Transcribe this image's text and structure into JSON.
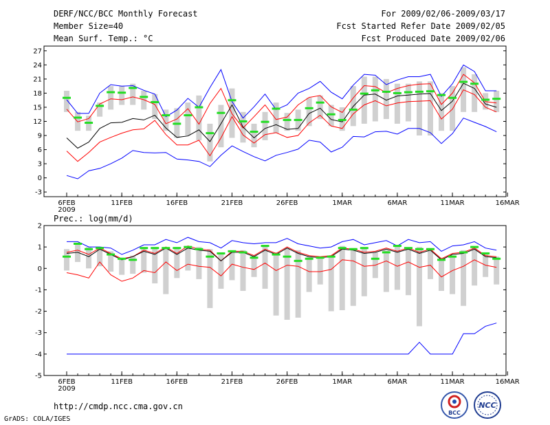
{
  "header": {
    "title": "DERF/NCC/BCC Monthly Forecast",
    "member_size": "Member Size=40",
    "variable": "Mean Surf. Temp.: °C",
    "period": "For 2009/02/06-2009/03/17",
    "started": "Fcst Started Refer Date 2009/02/05",
    "produced": "Fcst Produced Date 2009/02/06"
  },
  "footer": {
    "url": "http://cmdp.ncc.cma.gov.cn",
    "credit": "GrADS: COLA/IGES",
    "logo_bcc": "BCC",
    "logo_ncc": "NCC"
  },
  "colors": {
    "blue": "#0000ff",
    "red": "#ff0000",
    "black": "#000000",
    "green": "#22dd22",
    "gray": "#d0d0d0"
  },
  "chart_data": [
    {
      "type": "line",
      "title": "Mean Surf. Temp.: °C",
      "x_tick_labels": [
        "6FEB",
        "11FEB",
        "16FEB",
        "21FEB",
        "26FEB",
        "1MAR",
        "6MAR",
        "11MAR",
        "16MAR"
      ],
      "x_year_label": "2009",
      "ylim": [
        -4,
        28
      ],
      "yticks": [
        -3,
        0,
        3,
        6,
        9,
        12,
        15,
        18,
        21,
        24,
        27
      ],
      "series": [
        {
          "name": "max",
          "color": "blue",
          "values": [
            16.6,
            13.7,
            13.7,
            18.0,
            19.8,
            19.5,
            19.6,
            18.6,
            17.8,
            13.0,
            14.4,
            16.9,
            15.0,
            19.2,
            23.0,
            16.2,
            12.7,
            15.1,
            17.8,
            14.5,
            15.5,
            18.0,
            19.0,
            20.5,
            18.2,
            16.8,
            19.7,
            22.0,
            21.8,
            19.8,
            20.8,
            21.5,
            21.5,
            22.0,
            17.3,
            20.0,
            24.0,
            22.6,
            18.5,
            18.5
          ]
        },
        {
          "name": "upper",
          "color": "red",
          "values": [
            14.6,
            11.9,
            12.6,
            15.7,
            16.8,
            16.6,
            17.2,
            16.6,
            15.6,
            11.5,
            12.5,
            14.7,
            11.4,
            15.8,
            19.0,
            13.6,
            10.6,
            13.0,
            15.5,
            12.4,
            12.9,
            15.5,
            17.1,
            17.5,
            15.1,
            13.9,
            17.0,
            19.6,
            19.4,
            18.1,
            19.0,
            19.6,
            19.9,
            20.0,
            15.6,
            18.0,
            22.0,
            20.2,
            16.2,
            15.9
          ]
        },
        {
          "name": "mean",
          "color": "black",
          "values": [
            8.5,
            6.3,
            7.6,
            10.5,
            11.7,
            11.8,
            12.6,
            12.3,
            13.3,
            10.6,
            8.6,
            8.9,
            10.2,
            7.7,
            11.5,
            15.5,
            10.8,
            8.5,
            10.5,
            11.3,
            10.3,
            10.5,
            13.7,
            14.8,
            12.4,
            11.9,
            15.2,
            17.6,
            17.8,
            16.5,
            17.4,
            17.6,
            17.8,
            17.9,
            14.3,
            16.3,
            20.1,
            19.0,
            15.7,
            15.0
          ]
        },
        {
          "name": "lower",
          "color": "red",
          "values": [
            5.7,
            3.5,
            5.4,
            7.6,
            8.6,
            9.5,
            10.2,
            10.4,
            12.2,
            9.2,
            7.0,
            7.0,
            8.0,
            4.7,
            8.5,
            13.0,
            9.1,
            7.4,
            9.2,
            9.6,
            8.6,
            9.0,
            11.7,
            13.3,
            11.0,
            10.5,
            13.6,
            15.5,
            16.4,
            15.3,
            15.9,
            16.2,
            16.3,
            16.4,
            12.5,
            14.6,
            18.7,
            17.7,
            15.0,
            14.0
          ]
        },
        {
          "name": "min",
          "color": "blue",
          "values": [
            0.5,
            -0.2,
            1.5,
            2.0,
            3.0,
            4.2,
            5.8,
            5.4,
            5.3,
            5.4,
            4.0,
            3.8,
            3.5,
            2.4,
            4.8,
            6.8,
            5.6,
            4.5,
            3.6,
            4.8,
            5.4,
            6.1,
            8.0,
            7.6,
            5.5,
            6.5,
            8.8,
            8.7,
            9.8,
            9.9,
            9.3,
            10.5,
            10.5,
            9.6,
            7.3,
            9.4,
            12.7,
            11.8,
            10.9,
            9.8
          ]
        },
        {
          "name": "member_median",
          "color": "green",
          "values": [
            17.0,
            12.8,
            11.7,
            15.3,
            18.2,
            18.1,
            19.1,
            17.2,
            16.1,
            13.3,
            11.5,
            13.3,
            15.0,
            9.5,
            13.8,
            16.5,
            12.0,
            9.8,
            11.9,
            14.7,
            12.3,
            12.3,
            14.8,
            16.0,
            13.5,
            12.3,
            14.5,
            17.9,
            18.6,
            18.3,
            18.0,
            18.2,
            18.3,
            18.4,
            17.6,
            17.0,
            20.4,
            20.0,
            16.6,
            16.8
          ]
        },
        {
          "name": "range_top",
          "color": "gray",
          "values": [
            18.5,
            14.0,
            13.2,
            16.0,
            19.5,
            19.5,
            20.0,
            18.5,
            17.8,
            14.5,
            14.8,
            16.0,
            17.5,
            11.5,
            15.5,
            19.0,
            14.0,
            11.5,
            14.0,
            16.0,
            13.8,
            14.5,
            17.0,
            17.5,
            15.5,
            15.0,
            19.5,
            21.5,
            21.5,
            21.0,
            20.0,
            20.0,
            20.5,
            20.5,
            18.0,
            19.5,
            23.5,
            22.0,
            18.0,
            18.5
          ]
        },
        {
          "name": "range_bottom",
          "color": "gray",
          "values": [
            14.0,
            10.0,
            10.0,
            13.0,
            14.5,
            15.5,
            15.5,
            14.5,
            12.5,
            10.0,
            8.5,
            9.0,
            8.0,
            3.5,
            6.5,
            8.5,
            7.5,
            6.5,
            8.0,
            9.5,
            10.0,
            10.0,
            11.0,
            12.5,
            11.0,
            10.0,
            11.0,
            11.5,
            12.0,
            12.5,
            11.5,
            12.0,
            9.0,
            9.0,
            10.0,
            10.0,
            14.0,
            14.0,
            14.5,
            14.0
          ]
        }
      ]
    },
    {
      "type": "line",
      "title": "Prec.: log(mm/d)",
      "x_tick_labels": [
        "6FEB",
        "11FEB",
        "16FEB",
        "21FEB",
        "26FEB",
        "1MAR",
        "6MAR",
        "11MAR",
        "16MAR"
      ],
      "x_year_label": "2009",
      "ylim": [
        -5,
        2
      ],
      "yticks": [
        -5,
        -4,
        -3,
        -2,
        -1,
        0,
        1,
        2
      ],
      "series": [
        {
          "name": "max",
          "color": "blue",
          "values": [
            1.25,
            1.25,
            1.0,
            1.0,
            0.95,
            0.65,
            0.85,
            1.1,
            1.1,
            1.35,
            1.2,
            1.45,
            1.25,
            1.2,
            0.95,
            1.3,
            1.2,
            1.15,
            1.2,
            1.2,
            1.4,
            1.15,
            1.05,
            0.95,
            1.0,
            1.25,
            1.35,
            1.1,
            1.2,
            1.3,
            1.05,
            1.35,
            1.2,
            1.25,
            0.8,
            1.05,
            1.1,
            1.25,
            0.95,
            0.85
          ]
        },
        {
          "name": "upper",
          "color": "red",
          "values": [
            0.75,
            0.85,
            0.65,
            0.95,
            0.7,
            0.45,
            0.55,
            0.85,
            0.7,
            1.0,
            0.7,
            1.05,
            0.9,
            0.85,
            0.35,
            0.8,
            0.8,
            0.6,
            0.9,
            0.7,
            1.0,
            0.75,
            0.6,
            0.55,
            0.6,
            0.95,
            0.9,
            0.75,
            0.8,
            0.95,
            0.8,
            0.95,
            0.75,
            0.9,
            0.45,
            0.7,
            0.75,
            0.95,
            0.6,
            0.55
          ]
        },
        {
          "name": "mean",
          "color": "black",
          "values": [
            0.7,
            0.75,
            0.55,
            0.9,
            0.65,
            0.4,
            0.55,
            0.8,
            0.65,
            0.95,
            0.65,
            0.95,
            0.85,
            0.8,
            0.35,
            0.75,
            0.75,
            0.55,
            0.85,
            0.65,
            0.95,
            0.7,
            0.55,
            0.5,
            0.55,
            0.9,
            0.85,
            0.7,
            0.75,
            0.9,
            0.75,
            0.9,
            0.7,
            0.85,
            0.4,
            0.65,
            0.7,
            0.9,
            0.55,
            0.5
          ]
        },
        {
          "name": "lower",
          "color": "red",
          "values": [
            -0.2,
            -0.3,
            -0.45,
            0.3,
            -0.3,
            -0.6,
            -0.45,
            -0.1,
            -0.2,
            0.3,
            -0.1,
            0.2,
            0.1,
            0.05,
            -0.35,
            0.2,
            0.05,
            -0.05,
            0.25,
            -0.1,
            0.15,
            0.1,
            -0.15,
            -0.15,
            -0.05,
            0.4,
            0.35,
            0.1,
            0.15,
            0.35,
            0.1,
            0.3,
            0.05,
            0.15,
            -0.4,
            -0.1,
            0.1,
            0.4,
            0.15,
            0.05
          ]
        },
        {
          "name": "min",
          "color": "blue",
          "values": [
            -4,
            -4,
            -4,
            -4,
            -4,
            -4,
            -4,
            -4,
            -4,
            -4,
            -4,
            -4,
            -4,
            -4,
            -4,
            -4,
            -4,
            -4,
            -4,
            -4,
            -4,
            -4,
            -4,
            -4,
            -4,
            -4,
            -4,
            -4,
            -4,
            -4,
            -4,
            -4,
            -3.45,
            -4,
            -4,
            -4,
            -3.05,
            -3.05,
            -2.7,
            -2.55
          ]
        },
        {
          "name": "member_median",
          "color": "green",
          "values": [
            0.55,
            1.15,
            0.9,
            0.95,
            0.65,
            0.45,
            0.4,
            0.95,
            0.95,
            0.95,
            0.95,
            1.0,
            0.9,
            0.55,
            0.7,
            0.8,
            0.75,
            0.5,
            1.05,
            0.65,
            0.55,
            0.35,
            0.45,
            0.5,
            0.55,
            0.95,
            0.9,
            0.95,
            0.45,
            0.75,
            1.05,
            0.95,
            0.9,
            0.9,
            0.4,
            0.55,
            0.75,
            1.0,
            0.7,
            0.45
          ]
        },
        {
          "name": "range_top",
          "color": "gray",
          "values": [
            0.9,
            1.2,
            1.0,
            1.0,
            0.8,
            0.5,
            0.6,
            1.0,
            1.0,
            1.0,
            1.0,
            1.05,
            1.0,
            0.9,
            0.75,
            0.85,
            0.85,
            0.6,
            1.1,
            0.75,
            0.95,
            0.85,
            0.55,
            0.55,
            0.6,
            1.05,
            0.95,
            1.0,
            0.75,
            0.85,
            1.1,
            1.0,
            1.0,
            0.95,
            0.5,
            0.6,
            0.85,
            1.05,
            0.75,
            0.55
          ]
        },
        {
          "name": "range_bottom",
          "color": "gray",
          "values": [
            -0.1,
            0.3,
            0.0,
            0.1,
            -0.15,
            -0.3,
            -0.25,
            -0.2,
            -0.7,
            -1.2,
            -0.45,
            -0.1,
            -0.5,
            -1.85,
            -0.95,
            -0.55,
            -1.05,
            -0.4,
            -0.95,
            -2.2,
            -2.4,
            -2.3,
            -1.1,
            -0.75,
            -2.0,
            -1.95,
            -1.75,
            -1.3,
            -0.45,
            -1.1,
            -1.0,
            -1.25,
            -2.7,
            -0.5,
            -1.05,
            -1.2,
            -1.75,
            -0.8,
            -0.4,
            -0.75
          ]
        }
      ]
    }
  ]
}
